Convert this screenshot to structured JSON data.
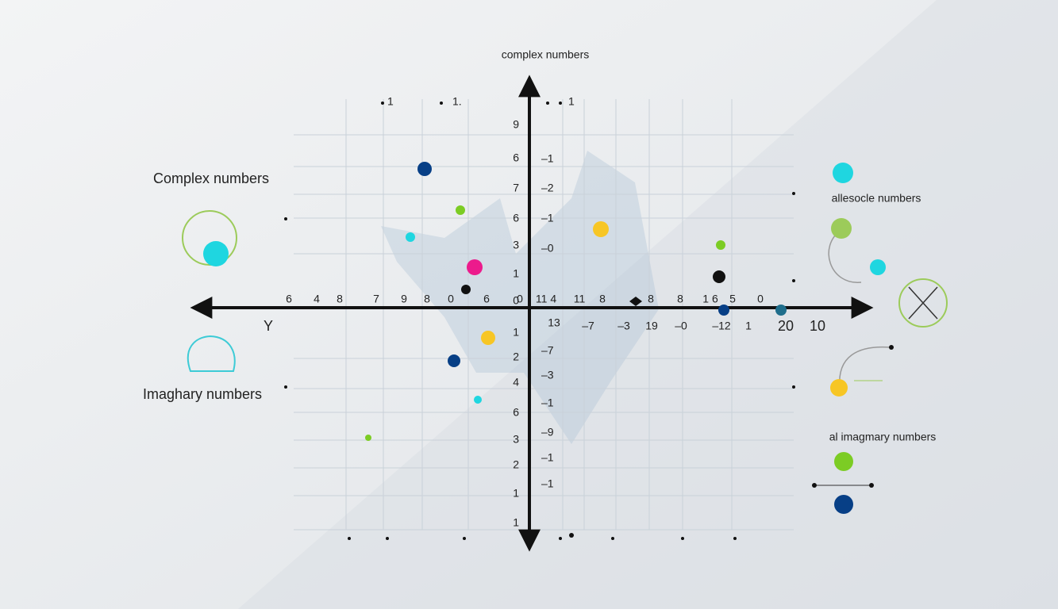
{
  "title": "complex numbers",
  "left_labels": [
    "Complex numbers",
    "Imaghary numbers",
    "Y"
  ],
  "right_labels": [
    "allesocle numbers",
    "al imagmary numbers"
  ],
  "top_labels": [
    "1",
    "1.",
    "1"
  ],
  "x_labels_above": [
    "6",
    "4",
    "8",
    "7",
    "9",
    "8",
    "0",
    "6",
    "0",
    "11 4",
    "11",
    "8",
    "8",
    "8",
    "1 6",
    "5",
    "0"
  ],
  "x_labels_below": [
    "13",
    "–7",
    "–3",
    "19",
    "–0",
    "–12",
    "1",
    "20",
    "10"
  ],
  "y_labels_left": [
    "9",
    "6",
    "7",
    "6",
    "3",
    "1",
    "0",
    "1",
    "2",
    "4",
    "6",
    "3",
    "2",
    "1",
    "1"
  ],
  "y_labels_right": [
    "–1",
    "–2",
    "–1",
    "–0",
    "–7",
    "–3",
    "–1",
    "–9",
    "–1",
    "–1"
  ]
}
